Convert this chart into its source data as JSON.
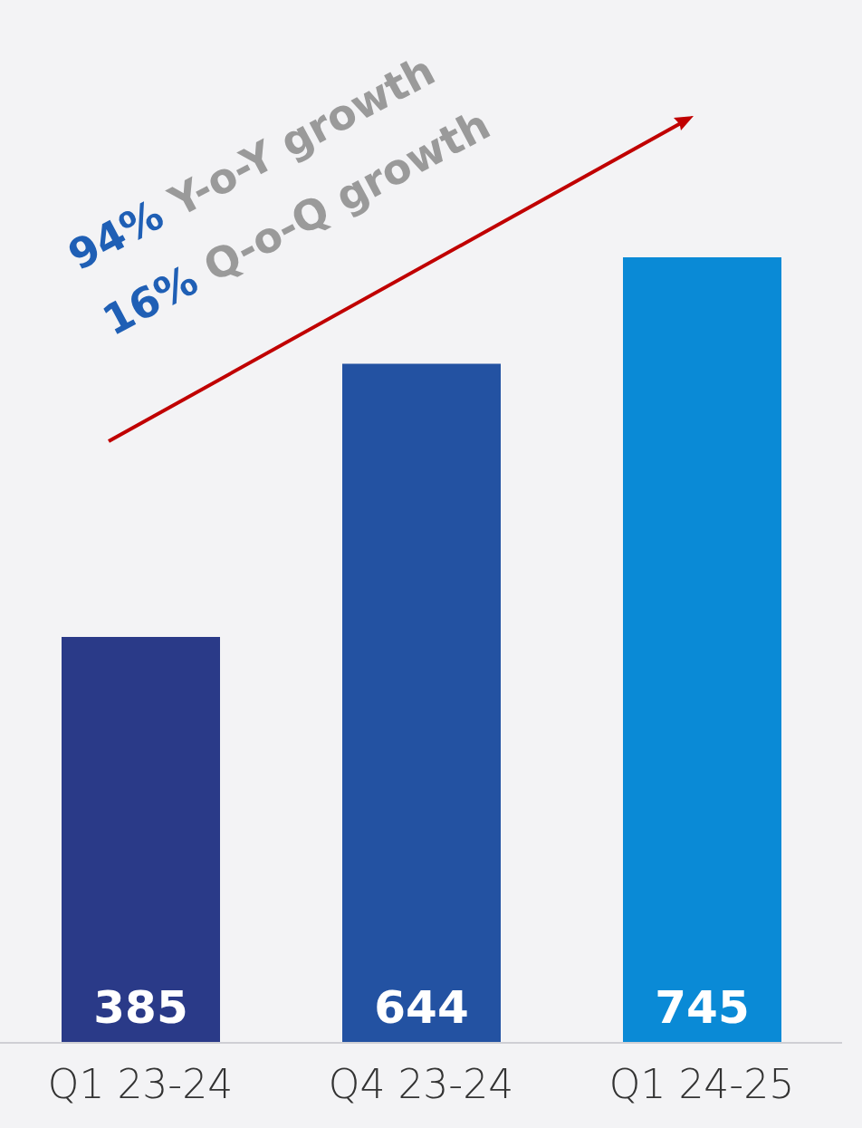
{
  "chart_data": {
    "type": "bar",
    "categories": [
      "Q1 23-24",
      "Q4 23-24",
      "Q1 24-25"
    ],
    "values": [
      385,
      644,
      745
    ],
    "colors": [
      "#2a3a88",
      "#2352a2",
      "#0a8ad6"
    ],
    "data_labels": true,
    "annotations": [
      "94% Y-o-Y growth",
      "16% Q-o-Q growth"
    ]
  }
}
